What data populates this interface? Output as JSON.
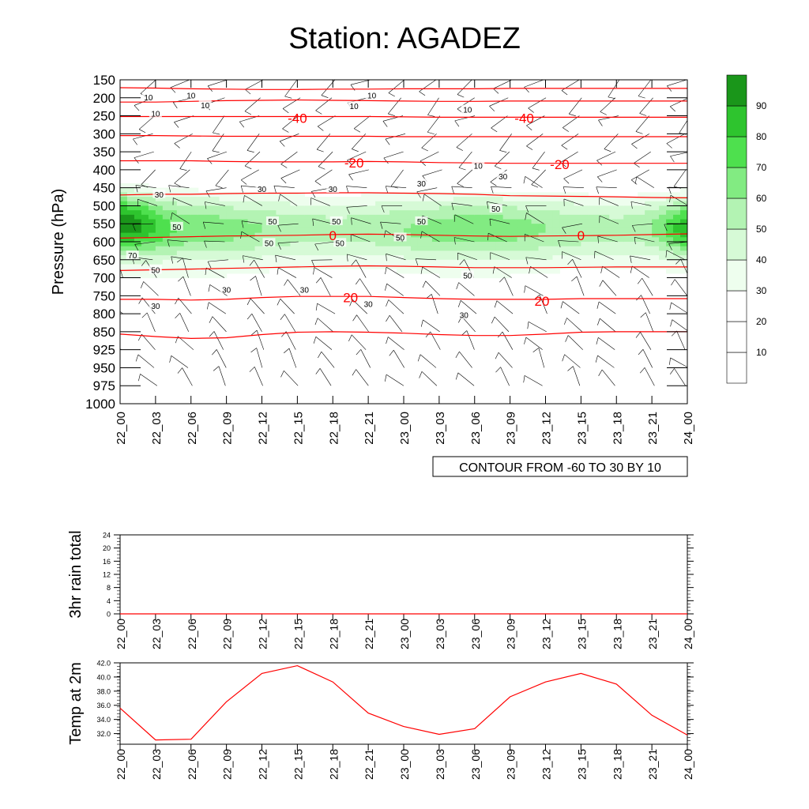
{
  "title": "Station: AGADEZ",
  "colors": {
    "temp_contour": "#ff0000",
    "rh_contour": "#000000",
    "temp_line": "#ff0000",
    "levels": [
      "#ffffff",
      "#ffffff",
      "#ffffff",
      "#eefeee",
      "#d6fad6",
      "#b3f3b3",
      "#82eb82",
      "#4ee04e",
      "#2ec42e",
      "#1a961a"
    ]
  },
  "chart_data": [
    {
      "type": "heatmap",
      "name_hint": "time-pressure cross section",
      "ylabel": "Pressure (hPa)",
      "xlabel": "",
      "x_ticks": [
        "22_00",
        "22_03",
        "22_06",
        "22_09",
        "22_12",
        "22_15",
        "22_18",
        "22_21",
        "23_00",
        "23_03",
        "23_06",
        "23_09",
        "23_12",
        "23_15",
        "23_18",
        "23_21",
        "24_00"
      ],
      "y_ticks": [
        "150",
        "200",
        "250",
        "300",
        "350",
        "400",
        "450",
        "500",
        "550",
        "600",
        "650",
        "700",
        "750",
        "800",
        "850",
        "925",
        "950",
        "975",
        "1000"
      ],
      "contour_info": "CONTOUR FROM -60 TO 30 BY 10",
      "colorbar_ticks": [
        "10",
        "20",
        "30",
        "40",
        "50",
        "60",
        "70",
        "80",
        "90"
      ],
      "shaded_field_levels": [
        10,
        20,
        30,
        40,
        50,
        60,
        70,
        80,
        90
      ],
      "shaded_contour_labels": [
        {
          "t": 0.8,
          "p": 200,
          "v": "10"
        },
        {
          "t": 1.0,
          "p": 245,
          "v": "10"
        },
        {
          "t": 2.0,
          "p": 195,
          "v": "10"
        },
        {
          "t": 2.4,
          "p": 222,
          "v": "10"
        },
        {
          "t": 6.6,
          "p": 225,
          "v": "10"
        },
        {
          "t": 7.1,
          "p": 195,
          "v": "10"
        },
        {
          "t": 9.8,
          "p": 235,
          "v": "10"
        },
        {
          "t": 10.1,
          "p": 390,
          "v": "10"
        },
        {
          "t": 1.1,
          "p": 470,
          "v": "30"
        },
        {
          "t": 4.0,
          "p": 455,
          "v": "30"
        },
        {
          "t": 6.0,
          "p": 455,
          "v": "30"
        },
        {
          "t": 8.5,
          "p": 440,
          "v": "30"
        },
        {
          "t": 10.8,
          "p": 420,
          "v": "30"
        },
        {
          "t": 3.0,
          "p": 735,
          "v": "30"
        },
        {
          "t": 5.2,
          "p": 735,
          "v": "30"
        },
        {
          "t": 7.0,
          "p": 775,
          "v": "30"
        },
        {
          "t": 9.7,
          "p": 805,
          "v": "30"
        },
        {
          "t": 1.0,
          "p": 780,
          "v": "30"
        },
        {
          "t": 1.6,
          "p": 560,
          "v": "50"
        },
        {
          "t": 4.3,
          "p": 545,
          "v": "50"
        },
        {
          "t": 6.1,
          "p": 545,
          "v": "50"
        },
        {
          "t": 8.5,
          "p": 545,
          "v": "50"
        },
        {
          "t": 4.2,
          "p": 605,
          "v": "50"
        },
        {
          "t": 6.2,
          "p": 605,
          "v": "50"
        },
        {
          "t": 7.9,
          "p": 590,
          "v": "50"
        },
        {
          "t": 9.8,
          "p": 695,
          "v": "50"
        },
        {
          "t": 10.6,
          "p": 510,
          "v": "50"
        },
        {
          "t": 1.0,
          "p": 680,
          "v": "50"
        },
        {
          "t": 0.35,
          "p": 640,
          "v": "70"
        }
      ],
      "temperature_contours": [
        {
          "value": -40,
          "p": [
            172,
            173,
            175,
            176,
            177,
            177,
            176,
            176,
            175,
            175,
            175,
            174,
            174,
            174,
            174,
            174,
            174
          ]
        },
        {
          "value": -40,
          "p": [
            212,
            212,
            210,
            208,
            207,
            206,
            207,
            208,
            209,
            210,
            210,
            209,
            209,
            209,
            209,
            209,
            209
          ]
        },
        {
          "value": -40,
          "p": [
            252,
            252,
            252,
            252,
            252,
            252,
            252,
            252,
            253,
            254,
            254,
            254,
            254,
            254,
            254,
            254,
            254
          ]
        },
        {
          "value": -30,
          "p": [
            305,
            305,
            306,
            307,
            307,
            307,
            307,
            307,
            308,
            308,
            308,
            308,
            308,
            308,
            308,
            308,
            308
          ]
        },
        {
          "value": -20,
          "p": [
            375,
            375,
            375,
            377,
            378,
            378,
            378,
            377,
            378,
            380,
            381,
            382,
            382,
            382,
            382,
            382,
            382
          ]
        },
        {
          "value": -10,
          "p": [
            470,
            468,
            468,
            466,
            465,
            465,
            464,
            464,
            465,
            466,
            468,
            472,
            473,
            474,
            475,
            477,
            478
          ]
        },
        {
          "value": 0,
          "p": [
            590,
            588,
            586,
            584,
            583,
            582,
            580,
            579,
            580,
            582,
            584,
            585,
            584,
            583,
            582,
            580,
            578
          ]
        },
        {
          "value": 10,
          "p": [
            680,
            678,
            676,
            674,
            672,
            670,
            668,
            667,
            668,
            670,
            672,
            672,
            672,
            671,
            670,
            670,
            670
          ]
        },
        {
          "value": 20,
          "p": [
            760,
            760,
            762,
            760,
            755,
            752,
            752,
            752,
            755,
            758,
            760,
            760,
            760,
            758,
            758,
            758,
            758
          ]
        },
        {
          "value": 30,
          "p": [
            860,
            870,
            878,
            875,
            862,
            852,
            850,
            852,
            856,
            862,
            866,
            866,
            860,
            852,
            850,
            850,
            850
          ]
        }
      ],
      "temperature_contour_labels": [
        {
          "t": 5.0,
          "p": 256,
          "v": "-40"
        },
        {
          "t": 11.4,
          "p": 256,
          "v": "-40"
        },
        {
          "t": 6.6,
          "p": 380,
          "v": "-20"
        },
        {
          "t": 12.4,
          "p": 385,
          "v": "-20"
        },
        {
          "t": 6.0,
          "p": 582,
          "v": "0"
        },
        {
          "t": 13.0,
          "p": 582,
          "v": "0"
        },
        {
          "t": 6.5,
          "p": 755,
          "v": "20"
        },
        {
          "t": 11.9,
          "p": 765,
          "v": "20"
        }
      ]
    },
    {
      "type": "line",
      "ylabel": "3hr rain total",
      "x": [
        "22_00",
        "22_03",
        "22_06",
        "22_09",
        "22_12",
        "22_15",
        "22_18",
        "22_21",
        "23_00",
        "23_03",
        "23_06",
        "23_09",
        "23_12",
        "23_15",
        "23_18",
        "23_21",
        "24_00"
      ],
      "y_ticks": [
        "0",
        "4",
        "8",
        "12",
        "16",
        "20",
        "24"
      ],
      "ylim": [
        0,
        24
      ],
      "series": [
        {
          "values": [
            0,
            0,
            0,
            0,
            0,
            0,
            0,
            0,
            0,
            0,
            0,
            0,
            0,
            0,
            0,
            0,
            0
          ]
        }
      ]
    },
    {
      "type": "line",
      "ylabel": "Temp at 2m",
      "x": [
        "22_00",
        "22_03",
        "22_06",
        "22_09",
        "22_12",
        "22_15",
        "22_18",
        "22_21",
        "23_00",
        "23_03",
        "23_06",
        "23_09",
        "23_12",
        "23_15",
        "23_18",
        "23_21",
        "24_00"
      ],
      "y_ticks": [
        "32.0",
        "34.0",
        "36.0",
        "38.0",
        "40.0",
        "42.0"
      ],
      "ylim": [
        30.5,
        42.0
      ],
      "series": [
        {
          "values": [
            35.6,
            31.1,
            31.2,
            36.5,
            40.5,
            41.6,
            39.3,
            34.9,
            33.0,
            31.9,
            32.7,
            37.2,
            39.3,
            40.5,
            39.0,
            34.6,
            31.8
          ]
        }
      ]
    }
  ]
}
